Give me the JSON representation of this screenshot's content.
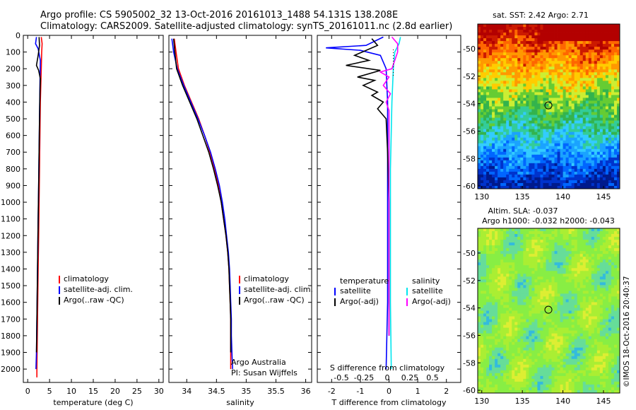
{
  "header": {
    "line1": "Argo profile: CS 5905002_32 13-Oct-2016 20161013_1488 54.131S 138.208E",
    "line2": "Climatology: CARS2009. Satellite-adjusted climatology: synTS_20161011.nc (2.8d earlier)"
  },
  "colors": {
    "climatology": "#ff0000",
    "satellite": "#0000ff",
    "argo": "#000000",
    "satellite_s": "#00e5ee",
    "argo_s": "#ff00ff"
  },
  "chart_data": [
    {
      "id": "temperature",
      "type": "line",
      "xlabel": "temperature (deg C)",
      "ylabel": "",
      "xlim": [
        -1,
        31
      ],
      "ylim": [
        2080,
        0
      ],
      "xticks": [
        0,
        5,
        10,
        15,
        20,
        25,
        30
      ],
      "yticks": [
        0,
        100,
        200,
        300,
        400,
        500,
        600,
        700,
        800,
        900,
        1000,
        1100,
        1200,
        1300,
        1400,
        1500,
        1600,
        1700,
        1800,
        1900,
        2000
      ],
      "legend": [
        "climatology",
        "satellite-adj. clim.",
        "Argo(..raw -QC)"
      ],
      "series": [
        {
          "name": "climatology",
          "color": "#ff0000",
          "points": [
            [
              3.1,
              10
            ],
            [
              3.3,
              50
            ],
            [
              3.2,
              100
            ],
            [
              3.1,
              200
            ],
            [
              2.9,
              400
            ],
            [
              2.8,
              600
            ],
            [
              2.7,
              800
            ],
            [
              2.6,
              1000
            ],
            [
              2.5,
              1200
            ],
            [
              2.4,
              1400
            ],
            [
              2.3,
              1600
            ],
            [
              2.2,
              1800
            ],
            [
              2.1,
              2000
            ],
            [
              2.1,
              2050
            ]
          ]
        },
        {
          "name": "satellite-adj. clim.",
          "color": "#0000ff",
          "points": [
            [
              2.0,
              10
            ],
            [
              1.8,
              50
            ],
            [
              2.4,
              80
            ],
            [
              2.9,
              150
            ],
            [
              2.8,
              300
            ],
            [
              2.7,
              500
            ],
            [
              2.6,
              700
            ],
            [
              2.5,
              900
            ],
            [
              2.4,
              1100
            ],
            [
              2.3,
              1300
            ],
            [
              2.2,
              1500
            ],
            [
              2.1,
              1700
            ],
            [
              2.0,
              1900
            ],
            [
              1.9,
              2000
            ]
          ]
        },
        {
          "name": "Argo(..raw -QC)",
          "color": "#000000",
          "points": [
            [
              2.6,
              10
            ],
            [
              2.7,
              60
            ],
            [
              2.4,
              120
            ],
            [
              2.0,
              180
            ],
            [
              2.5,
              210
            ],
            [
              2.9,
              260
            ],
            [
              2.8,
              350
            ],
            [
              2.7,
              500
            ],
            [
              2.6,
              700
            ],
            [
              2.5,
              900
            ],
            [
              2.4,
              1100
            ],
            [
              2.3,
              1300
            ],
            [
              2.2,
              1500
            ],
            [
              2.1,
              1700
            ],
            [
              2.0,
              1900
            ]
          ]
        }
      ]
    },
    {
      "id": "salinity",
      "type": "line",
      "xlabel": "salinity",
      "ylabel": "",
      "xlim": [
        33.7,
        36.1
      ],
      "ylim": [
        2080,
        0
      ],
      "xticks": [
        34,
        34.5,
        35,
        35.5,
        36
      ],
      "legend": [
        "climatology",
        "satellite-adj. clim.",
        "Argo(..raw -QC)"
      ],
      "notes": [
        "Argo Australia",
        "PI: Susan Wijffels"
      ],
      "series": [
        {
          "name": "climatology",
          "color": "#ff0000",
          "points": [
            [
              33.79,
              20
            ],
            [
              33.82,
              100
            ],
            [
              33.86,
              200
            ],
            [
              33.96,
              300
            ],
            [
              34.08,
              400
            ],
            [
              34.2,
              500
            ],
            [
              34.3,
              600
            ],
            [
              34.39,
              700
            ],
            [
              34.47,
              800
            ],
            [
              34.53,
              900
            ],
            [
              34.58,
              1000
            ],
            [
              34.62,
              1100
            ],
            [
              34.66,
              1200
            ],
            [
              34.69,
              1300
            ],
            [
              34.71,
              1400
            ],
            [
              34.72,
              1500
            ],
            [
              34.73,
              1600
            ],
            [
              34.74,
              1700
            ],
            [
              34.74,
              1800
            ],
            [
              34.74,
              1900
            ],
            [
              34.74,
              2000
            ]
          ]
        },
        {
          "name": "satellite-adj. clim.",
          "color": "#0000ff",
          "points": [
            [
              33.75,
              20
            ],
            [
              33.78,
              100
            ],
            [
              33.84,
              200
            ],
            [
              33.95,
              300
            ],
            [
              34.07,
              400
            ],
            [
              34.19,
              500
            ],
            [
              34.3,
              600
            ],
            [
              34.4,
              700
            ],
            [
              34.48,
              800
            ],
            [
              34.55,
              900
            ],
            [
              34.6,
              1000
            ],
            [
              34.64,
              1100
            ],
            [
              34.67,
              1200
            ],
            [
              34.7,
              1300
            ],
            [
              34.72,
              1400
            ],
            [
              34.73,
              1500
            ],
            [
              34.74,
              1600
            ],
            [
              34.75,
              1700
            ],
            [
              34.75,
              1800
            ],
            [
              34.76,
              1900
            ],
            [
              34.77,
              2000
            ]
          ]
        },
        {
          "name": "Argo(..raw -QC)",
          "color": "#000000",
          "points": [
            [
              33.78,
              20
            ],
            [
              33.8,
              100
            ],
            [
              33.83,
              200
            ],
            [
              33.93,
              300
            ],
            [
              34.05,
              400
            ],
            [
              34.17,
              500
            ],
            [
              34.27,
              600
            ],
            [
              34.37,
              700
            ],
            [
              34.45,
              800
            ],
            [
              34.52,
              900
            ],
            [
              34.58,
              1000
            ],
            [
              34.62,
              1100
            ],
            [
              34.66,
              1200
            ],
            [
              34.69,
              1300
            ],
            [
              34.71,
              1400
            ],
            [
              34.72,
              1500
            ],
            [
              34.73,
              1600
            ],
            [
              34.74,
              1700
            ],
            [
              34.74,
              1800
            ],
            [
              34.74,
              1900
            ]
          ]
        }
      ]
    },
    {
      "id": "difference",
      "type": "line",
      "xlabel": "T difference from climatology",
      "xlabel_top": "S difference from climatology",
      "ylabel": "",
      "xlim": [
        -2.5,
        2.5
      ],
      "ylim": [
        2080,
        0
      ],
      "xticks": [
        -2,
        -1,
        0,
        1,
        2
      ],
      "xticks_top_labels": [
        "-0.5",
        "-0.25",
        "0",
        "0.25",
        "0.5"
      ],
      "legend_left_title": "temperature",
      "legend_right_title": "salinity",
      "legend": [
        "satellite",
        "Argo(-adj)",
        "satellite",
        "Argo(-adj)"
      ],
      "series": [
        {
          "name": "satellite",
          "group": "temperature",
          "color": "#0000ff",
          "points": [
            [
              -0.2,
              10
            ],
            [
              -0.8,
              60
            ],
            [
              -2.2,
              75
            ],
            [
              -1.0,
              90
            ],
            [
              -0.3,
              120
            ],
            [
              -0.1,
              200
            ],
            [
              -0.05,
              400
            ],
            [
              -0.05,
              800
            ],
            [
              -0.05,
              1200
            ],
            [
              -0.05,
              1600
            ],
            [
              -0.1,
              2000
            ]
          ]
        },
        {
          "name": "Argo(-adj)",
          "group": "temperature",
          "color": "#000000",
          "points": [
            [
              -0.6,
              20
            ],
            [
              -0.4,
              60
            ],
            [
              -1.2,
              120
            ],
            [
              -0.7,
              150
            ],
            [
              -1.5,
              180
            ],
            [
              -0.3,
              210
            ],
            [
              -1.1,
              250
            ],
            [
              -0.5,
              270
            ],
            [
              -0.9,
              300
            ],
            [
              -0.4,
              340
            ],
            [
              -0.6,
              360
            ],
            [
              -0.2,
              400
            ],
            [
              -0.4,
              440
            ],
            [
              -0.1,
              500
            ],
            [
              -0.05,
              700
            ],
            [
              0,
              1000
            ],
            [
              0,
              1400
            ],
            [
              0,
              1800
            ]
          ]
        },
        {
          "name": "satellite",
          "group": "salinity",
          "color": "#00e5ee",
          "points": [
            [
              0.4,
              10
            ],
            [
              0.35,
              50
            ],
            [
              0.2,
              100
            ],
            [
              0.15,
              200
            ],
            [
              0.1,
              400
            ],
            [
              0.05,
              800
            ],
            [
              0.05,
              1200
            ],
            [
              0.05,
              1600
            ],
            [
              0.08,
              2000
            ]
          ]
        },
        {
          "name": "Argo(-adj)",
          "group": "salinity",
          "color": "#ff00ff",
          "points": [
            [
              0.1,
              10
            ],
            [
              0.3,
              50
            ],
            [
              0.3,
              100
            ],
            [
              0.1,
              200
            ],
            [
              -0.3,
              220
            ],
            [
              0.0,
              250
            ],
            [
              -0.2,
              300
            ],
            [
              0.05,
              350
            ],
            [
              -0.1,
              400
            ],
            [
              0.0,
              450
            ],
            [
              0.0,
              700
            ],
            [
              0.0,
              1000
            ],
            [
              0.0,
              1400
            ],
            [
              0.0,
              1800
            ]
          ]
        }
      ]
    },
    {
      "id": "sst_map",
      "type": "heatmap",
      "title": "sat. SST: 2.42 Argo: 2.71",
      "xlim": [
        129.5,
        147
      ],
      "ylim": [
        -60.2,
        -48.2
      ],
      "xticks": [
        130,
        135,
        140,
        145
      ],
      "yticks": [
        -50,
        -52,
        -54,
        -56,
        -58,
        -60
      ],
      "marker": {
        "lon": 138.208,
        "lat": -54.131
      }
    },
    {
      "id": "sla_map",
      "type": "heatmap",
      "title": "Altim. SLA: -0.037",
      "subtitle": "Argo h1000: -0.032 h2000: -0.043",
      "xlim": [
        129.5,
        147
      ],
      "ylim": [
        -60.2,
        -48.2
      ],
      "xticks": [
        130,
        135,
        140,
        145
      ],
      "yticks": [
        -50,
        -52,
        -54,
        -56,
        -58,
        -60
      ],
      "marker": {
        "lon": 138.208,
        "lat": -54.131
      }
    }
  ],
  "footer": {
    "credit": "©IMOS 18-Oct-2016 20:40:37"
  }
}
